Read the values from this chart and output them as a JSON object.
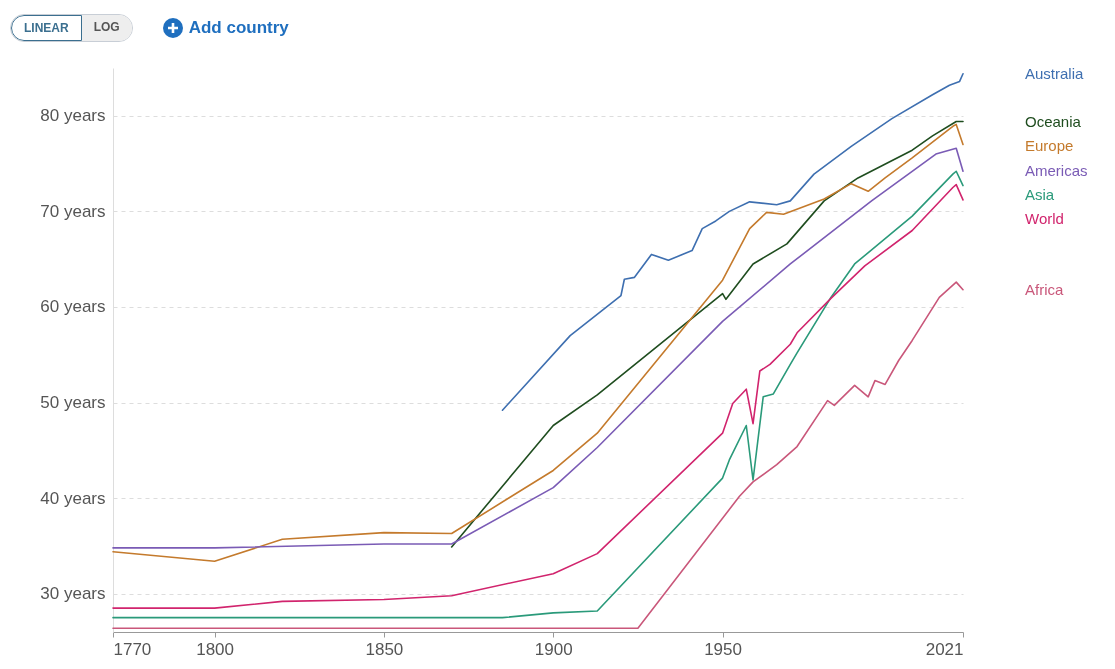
{
  "chart_data": {
    "type": "line",
    "annotations": [
      "LINEAR",
      "LOG",
      "Add country"
    ],
    "xlim": [
      1770,
      2021
    ],
    "xticks": [
      1770,
      1800,
      1850,
      1900,
      1950,
      2021
    ],
    "ylim": [
      26,
      85
    ],
    "yticks": [
      {
        "value": 30,
        "label": "30 years"
      },
      {
        "value": 40,
        "label": "40 years"
      },
      {
        "value": 50,
        "label": "50 years"
      },
      {
        "value": 60,
        "label": "60 years"
      },
      {
        "value": 70,
        "label": "70 years"
      },
      {
        "value": 80,
        "label": "80 years"
      }
    ],
    "grid": "y",
    "line_style": "solid",
    "marker": "none",
    "series": [
      {
        "name": "Australia",
        "color": "#3e6fb0",
        "x": [
          1885,
          1905,
          1920,
          1921,
          1924,
          1929,
          1934,
          1941,
          1944,
          1948,
          1952,
          1958,
          1966,
          1970,
          1977,
          1988,
          2000,
          2012,
          2017,
          2020,
          2021
        ],
        "values": [
          49.2,
          57.0,
          61.2,
          62.9,
          63.1,
          65.5,
          64.9,
          65.9,
          68.2,
          69.0,
          70.0,
          71.0,
          70.7,
          71.1,
          73.9,
          76.8,
          79.7,
          82.2,
          83.2,
          83.6,
          84.4
        ]
      },
      {
        "name": "Oceania",
        "color": "#1f4d1f",
        "x": [
          1870,
          1900,
          1913,
          1950,
          1951,
          1959,
          1969,
          1980,
          1990,
          2006,
          2012,
          2019,
          2021
        ],
        "values": [
          34.9,
          47.6,
          50.8,
          61.4,
          60.8,
          64.5,
          66.6,
          71.1,
          73.5,
          76.4,
          77.9,
          79.4,
          79.4
        ]
      },
      {
        "name": "Europe",
        "color": "#c47a2c",
        "x": [
          1770,
          1800,
          1820,
          1850,
          1870,
          1900,
          1913,
          1950,
          1958,
          1963,
          1968,
          1980,
          1988,
          1993,
          1998,
          2006,
          2018,
          2019,
          2021
        ],
        "values": [
          34.4,
          33.4,
          35.7,
          36.4,
          36.3,
          42.9,
          46.8,
          62.8,
          68.2,
          69.9,
          69.7,
          71.3,
          72.9,
          72.1,
          73.5,
          75.6,
          78.9,
          79.1,
          77.0
        ]
      },
      {
        "name": "Americas",
        "color": "#7a5bb5",
        "x": [
          1770,
          1800,
          1850,
          1870,
          1900,
          1913,
          1950,
          1970,
          1994,
          2013,
          2019,
          2021
        ],
        "values": [
          34.8,
          34.8,
          35.2,
          35.2,
          41.1,
          45.3,
          58.5,
          64.5,
          71.1,
          76.0,
          76.6,
          74.2
        ]
      },
      {
        "name": "Asia",
        "color": "#2a9a7a",
        "x": [
          1770,
          1885,
          1900,
          1913,
          1950,
          1952,
          1957,
          1959,
          1962,
          1965,
          1970,
          1972,
          1982,
          1989,
          2006,
          2018,
          2019,
          2021
        ],
        "values": [
          27.5,
          27.5,
          28.0,
          28.2,
          42.1,
          44.0,
          47.6,
          41.9,
          50.6,
          50.9,
          54.0,
          55.2,
          61.0,
          64.5,
          69.5,
          73.9,
          74.2,
          72.7
        ]
      },
      {
        "name": "World",
        "color": "#d1246d",
        "x": [
          1770,
          1800,
          1820,
          1850,
          1870,
          1900,
          1913,
          1950,
          1953,
          1957,
          1959,
          1961,
          1964,
          1970,
          1972,
          1982,
          1992,
          2006,
          2018,
          2019,
          2021
        ],
        "values": [
          28.5,
          28.5,
          29.2,
          29.4,
          29.8,
          32.1,
          34.2,
          46.8,
          49.9,
          51.4,
          47.8,
          53.3,
          54.0,
          56.1,
          57.3,
          60.9,
          64.3,
          68.0,
          72.5,
          72.8,
          71.2
        ]
      },
      {
        "name": "Africa",
        "color": "#c9577a",
        "x": [
          1770,
          1925,
          1955,
          1959,
          1966,
          1972,
          1981,
          1983,
          1989,
          1993,
          1995,
          1998,
          2002,
          2006,
          2014,
          2019,
          2021
        ],
        "values": [
          26.4,
          26.4,
          40.2,
          41.7,
          43.5,
          45.4,
          50.2,
          49.7,
          51.8,
          50.6,
          52.3,
          51.9,
          54.4,
          56.5,
          61.0,
          62.6,
          61.8
        ]
      }
    ]
  }
}
